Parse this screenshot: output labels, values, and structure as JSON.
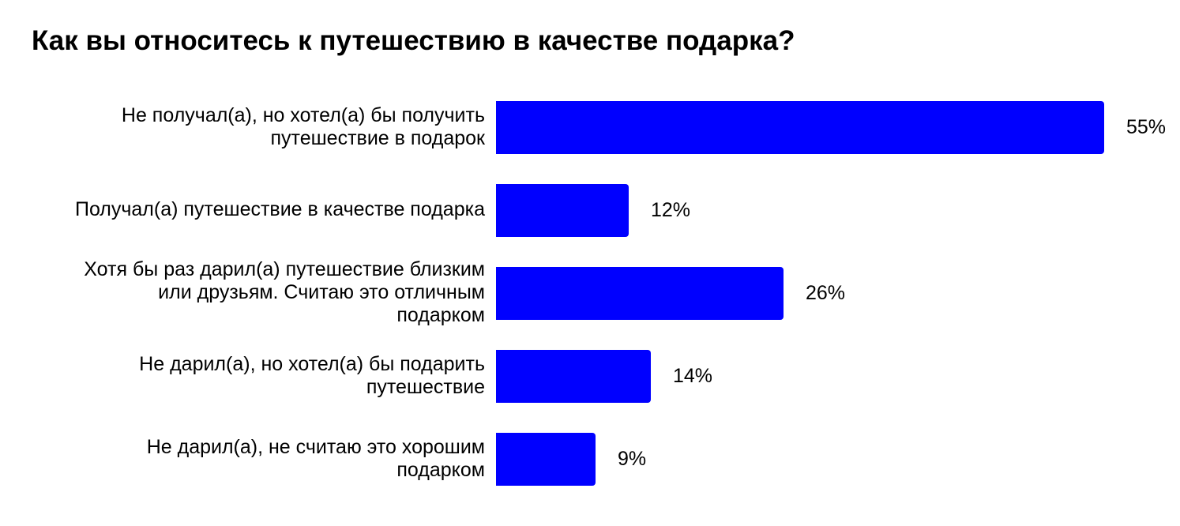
{
  "chart_data": {
    "type": "bar",
    "orientation": "horizontal",
    "title": "Как вы относитесь к путешествию в качестве подарка?",
    "categories": [
      "Не получал(а), но хотел(а) бы получить\nпутешествие в подарок",
      "Получал(а) путешествие в качестве подарка",
      "Хотя бы раз дарил(а) путешествие близким\nили друзьям. Считаю это отличным\nподарком",
      "Не дарил(а), но хотел(а) бы подарить\nпутешествие",
      "Не дарил(а), не считаю это хорошим\nподарком"
    ],
    "values": [
      55,
      12,
      26,
      14,
      9
    ],
    "value_labels": [
      "55%",
      "12%",
      "26%",
      "14%",
      "9%"
    ],
    "xlim": [
      0,
      55
    ],
    "grid": false,
    "legend": "none",
    "bar_color": "#0000ff"
  }
}
